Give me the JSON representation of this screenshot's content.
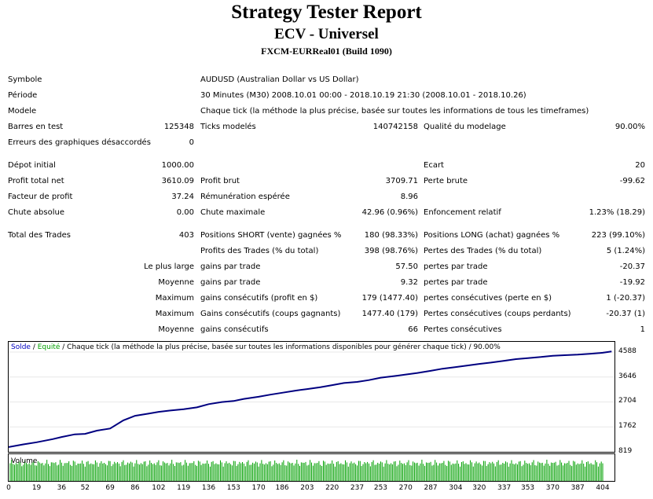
{
  "header": {
    "title": "Strategy Tester Report",
    "subtitle": "ECV - Universel",
    "account": "FXCM-EURReal01 (Build 1090)"
  },
  "report": {
    "symbole_label": "Symbole",
    "symbole_value": "AUDUSD (Australian Dollar vs US Dollar)",
    "periode_label": "Période",
    "periode_value": "30 Minutes (M30) 2008.10.01 00:00 - 2018.10.19 21:30 (2008.10.01 - 2018.10.26)",
    "modele_label": "Modele",
    "modele_value": "Chaque tick (la méthode la plus précise, basée sur toutes les informations de tous les timeframes)",
    "barres_label": "Barres en test",
    "barres_value": "125348",
    "ticks_label": "Ticks modelés",
    "ticks_value": "140742158",
    "qualite_label": "Qualité du modelage",
    "qualite_value": "90.00%",
    "erreurs_label": "Erreurs des graphiques désaccordés",
    "erreurs_value": "0",
    "depot_label": "Dépot initial",
    "depot_value": "1000.00",
    "ecart_label": "Ecart",
    "ecart_value": "20",
    "profit_net_label": "Profit total net",
    "profit_net_value": "3610.09",
    "profit_brut_label": "Profit brut",
    "profit_brut_value": "3709.71",
    "perte_brute_label": "Perte brute",
    "perte_brute_value": "-99.62",
    "facteur_label": "Facteur de profit",
    "facteur_value": "37.24",
    "remuneration_label": "Rémunération espérée",
    "remuneration_value": "8.96",
    "chute_abs_label": "Chute absolue",
    "chute_abs_value": "0.00",
    "chute_max_label": "Chute maximale",
    "chute_max_value": "42.96 (0.96%)",
    "enfoncement_label": "Enfoncement relatif",
    "enfoncement_value": "1.23% (18.29)",
    "total_trades_label": "Total des Trades",
    "total_trades_value": "403",
    "short_label": "Positions SHORT (vente) gagnées %",
    "short_value": "180 (98.33%)",
    "long_label": "Positions LONG (achat) gagnées %",
    "long_value": "223 (99.10%)",
    "profits_trades_label": "Profits des Trades (% du total)",
    "profits_trades_value": "398 (98.76%)",
    "pertes_trades_label": "Pertes des Trades (% du total)",
    "pertes_trades_value": "5 (1.24%)",
    "plus_large_label": "Le plus large",
    "gains_par_trade_label": "gains par trade",
    "gains_plus_large_value": "57.50",
    "pertes_par_trade_label": "pertes par trade",
    "pertes_plus_large_value": "-20.37",
    "moyenne_label": "Moyenne",
    "gains_par_trade_label2": "gains par trade",
    "gains_moyenne_value": "9.32",
    "pertes_par_trade_label2": "pertes par trade",
    "pertes_moyenne_value": "-19.92",
    "maximum_label": "Maximum",
    "gains_consec_profit_label": "gains consécutifs (profit en $)",
    "gains_consec_profit_value": "179 (1477.40)",
    "pertes_consec_perte_label": "pertes consécutives (perte en $)",
    "pertes_consec_perte_value": "1 (-20.37)",
    "maximum_label2": "Maximum",
    "gains_consec_coups_label": "Gains consécutifs (coups gagnants)",
    "gains_consec_coups_value": "1477.40 (179)",
    "pertes_consec_coups_label": "Pertes consécutives (coups perdants)",
    "pertes_consec_coups_value": "-20.37 (1)",
    "moyenne_label2": "Moyenne",
    "gains_consec_label": "gains consécutifs",
    "gains_consec_value": "66",
    "pertes_consec_label": "Pertes consécutives",
    "pertes_consec_value": "1"
  },
  "chart": {
    "legend_solde": "Solde",
    "legend_sep1": " / ",
    "legend_equite": "Equité",
    "legend_rest": " / Chaque tick (la méthode la plus précise, basée sur toutes les informations disponibles pour générer chaque tick) / 90.00%",
    "volume_label": "Volume",
    "colors": {
      "balance": "#000080",
      "equity": "#00a000",
      "volume": "#00a000",
      "solde_text": "#0000c0"
    }
  },
  "chart_data": {
    "type": "line",
    "title": "",
    "xlabel": "",
    "ylabel": "",
    "y_ticks": [
      4588,
      3646,
      2704,
      1762,
      819
    ],
    "x_ticks": [
      0,
      19,
      36,
      52,
      69,
      86,
      102,
      119,
      136,
      153,
      170,
      186,
      203,
      220,
      237,
      253,
      270,
      287,
      304,
      320,
      337,
      353,
      370,
      387,
      404
    ],
    "xlim": [
      0,
      412
    ],
    "ylim": [
      819,
      4588
    ],
    "series": [
      {
        "name": "Solde",
        "x": [
          0,
          10,
          19,
          30,
          36,
          45,
          52,
          60,
          69,
          78,
          86,
          95,
          102,
          110,
          119,
          128,
          136,
          145,
          153,
          160,
          170,
          178,
          186,
          195,
          203,
          212,
          220,
          228,
          237,
          245,
          253,
          262,
          270,
          278,
          287,
          295,
          304,
          312,
          320,
          328,
          337,
          345,
          353,
          362,
          370,
          378,
          387,
          395,
          404,
          410
        ],
        "values": [
          1000,
          1100,
          1180,
          1300,
          1380,
          1480,
          1500,
          1620,
          1700,
          2010,
          2180,
          2260,
          2330,
          2380,
          2430,
          2500,
          2620,
          2700,
          2740,
          2820,
          2900,
          2980,
          3050,
          3130,
          3190,
          3260,
          3340,
          3420,
          3460,
          3530,
          3620,
          3680,
          3740,
          3800,
          3880,
          3960,
          4020,
          4080,
          4140,
          4190,
          4260,
          4320,
          4360,
          4400,
          4450,
          4470,
          4490,
          4520,
          4560,
          4610
        ]
      }
    ],
    "volume": {
      "name": "Volume",
      "bars": 404,
      "min_height": 0.6,
      "max_height": 0.9
    }
  }
}
